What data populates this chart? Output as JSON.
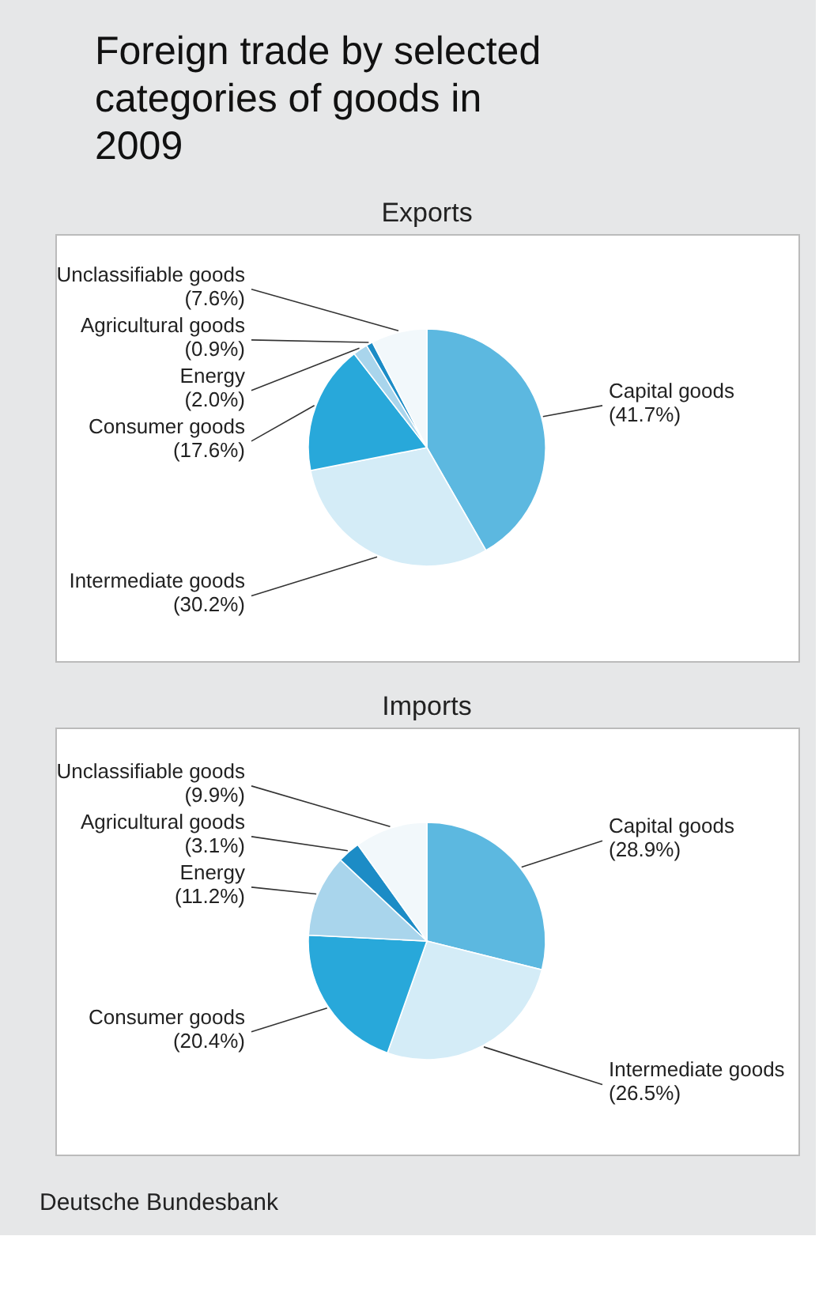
{
  "chart_data": [
    {
      "type": "pie",
      "title": "Foreign trade by selected categories of goods in 2009",
      "subtitle": "Exports",
      "categories": [
        "Capital goods",
        "Intermediate goods",
        "Consumer goods",
        "Energy",
        "Agricultural goods",
        "Unclassifiable goods"
      ],
      "values": [
        41.7,
        30.2,
        17.6,
        2.0,
        0.9,
        7.6
      ],
      "value_labels": [
        "(41.7%)",
        "(30.2%)",
        "(17.6%)",
        "(2.0%)",
        "(0.9%)",
        "(7.6%)"
      ],
      "colors": [
        "#5cb8e0",
        "#d4ecf7",
        "#28a8da",
        "#a9d5ec",
        "#1c8cc6",
        "#f2f8fb"
      ]
    },
    {
      "type": "pie",
      "title": "Imports",
      "categories": [
        "Capital goods",
        "Intermediate goods",
        "Consumer goods",
        "Energy",
        "Agricultural goods",
        "Unclassifiable goods"
      ],
      "values": [
        28.9,
        26.5,
        20.4,
        11.2,
        3.1,
        9.9
      ],
      "value_labels": [
        "(28.9%)",
        "(26.5%)",
        "(20.4%)",
        "(11.2%)",
        "(3.1%)",
        "(9.9%)"
      ],
      "colors": [
        "#5cb8e0",
        "#d4ecf7",
        "#28a8da",
        "#a9d5ec",
        "#1c8cc6",
        "#f2f8fb"
      ],
      "annotations": [
        "Deutsche Bundesbank"
      ]
    }
  ]
}
